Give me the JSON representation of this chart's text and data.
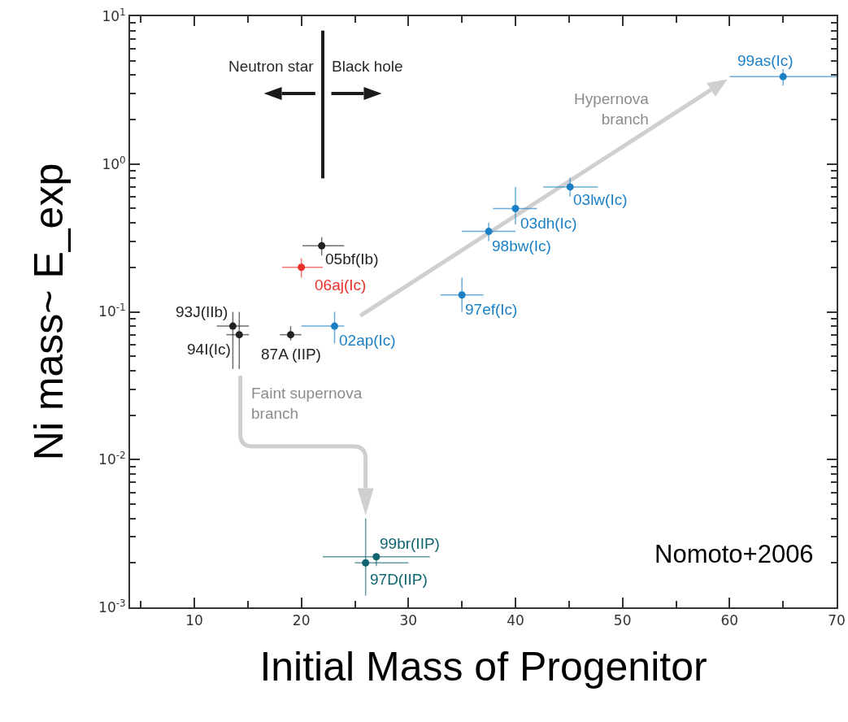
{
  "chart_data": {
    "type": "scatter",
    "xlabel": "Initial Mass of Progenitor",
    "ylabel": "Ni mass~ E_exp",
    "xlim": [
      4,
      70
    ],
    "xticks": [
      10,
      20,
      30,
      40,
      50,
      60,
      70
    ],
    "ylim": [
      0.001,
      10
    ],
    "log": "y",
    "yticks": [
      {
        "value": 0.001,
        "label": "10$^{-3}$"
      },
      {
        "value": 0.01,
        "label": "10$^{-2}$"
      },
      {
        "value": 0.1,
        "label": "10$^{-1}$"
      },
      {
        "value": 1,
        "label": "10$^{0}$"
      },
      {
        "value": 10,
        "label": "10$^{1}$"
      }
    ],
    "grid": false,
    "marker": "circle",
    "series": [
      {
        "color": "#222222",
        "x": [
          13.6,
          14.2,
          19,
          21.9
        ],
        "values": [
          0.08,
          0.07,
          0.07,
          0.28
        ],
        "errors": [
          [
            0.041,
            0.1
          ],
          [
            0.041,
            0.1
          ],
          [
            0.064,
            0.08
          ],
          [
            0.24,
            0.32
          ]
        ],
        "xerrors": [
          [
            12.1,
            15.1
          ],
          [
            13,
            15.1
          ],
          [
            18,
            20
          ],
          [
            20.1,
            24
          ]
        ]
      },
      {
        "color": "#e8312a",
        "x": [
          20
        ],
        "values": [
          0.2
        ],
        "errors": [
          [
            0.17,
            0.23
          ]
        ],
        "xerrors": [
          [
            18.2,
            22
          ]
        ]
      },
      {
        "color": "#1a7fc4",
        "x": [
          23.1,
          35,
          37.5,
          40,
          45.1,
          65
        ],
        "values": [
          0.08,
          0.13,
          0.35,
          0.5,
          0.7,
          3.9
        ],
        "errors": [
          [
            0.061,
            0.1
          ],
          [
            0.1,
            0.17
          ],
          [
            0.3,
            0.4
          ],
          [
            0.39,
            0.7
          ],
          [
            0.6,
            0.81
          ],
          [
            3.4,
            4.4
          ]
        ],
        "xerrors": [
          [
            20,
            24
          ],
          [
            33,
            37
          ],
          [
            35,
            40
          ],
          [
            37.9,
            42
          ],
          [
            42.6,
            47.7
          ],
          [
            60,
            70
          ]
        ]
      },
      {
        "color": "#0f6470",
        "x": [
          26,
          27
        ],
        "values": [
          0.002,
          0.0022
        ],
        "errors": [
          [
            0.0012,
            0.004
          ],
          [
            0.0019,
            0.0023
          ]
        ],
        "xerrors": [
          [
            25,
            30
          ],
          [
            22,
            32
          ]
        ]
      }
    ],
    "ref_lines": [
      {
        "axis": "x",
        "value": 22,
        "color": "#1a1a1a"
      }
    ],
    "annotations": [
      "Neutron star",
      "Black hole",
      "Hypernova\nbranch",
      "Faint supernova\nbranch",
      "Nomoto+2006",
      {
        "text": "93J(IIb)",
        "x": 13.6,
        "y": 0.08
      },
      {
        "text": "94I(Ic)",
        "x": 14.2,
        "y": 0.07
      },
      {
        "text": "87A (IIP)",
        "x": 19,
        "y": 0.07
      },
      {
        "text": "05bf(Ib)",
        "x": 21.9,
        "y": 0.28
      },
      {
        "text": "06aj(Ic)",
        "x": 20,
        "y": 0.2
      },
      {
        "text": "02ap(Ic)",
        "x": 23.1,
        "y": 0.08
      },
      {
        "text": "97ef(Ic)",
        "x": 35,
        "y": 0.13
      },
      {
        "text": "98bw(Ic)",
        "x": 37.5,
        "y": 0.35
      },
      {
        "text": "03dh(Ic)",
        "x": 40,
        "y": 0.5
      },
      {
        "text": "03lw(Ic)",
        "x": 45.1,
        "y": 0.7
      },
      {
        "text": "99as(Ic)",
        "x": 65,
        "y": 3.9
      },
      {
        "text": "97D(IIP)",
        "x": 26,
        "y": 0.002
      },
      {
        "text": "99br(IIP)",
        "x": 27,
        "y": 0.0022
      }
    ]
  }
}
